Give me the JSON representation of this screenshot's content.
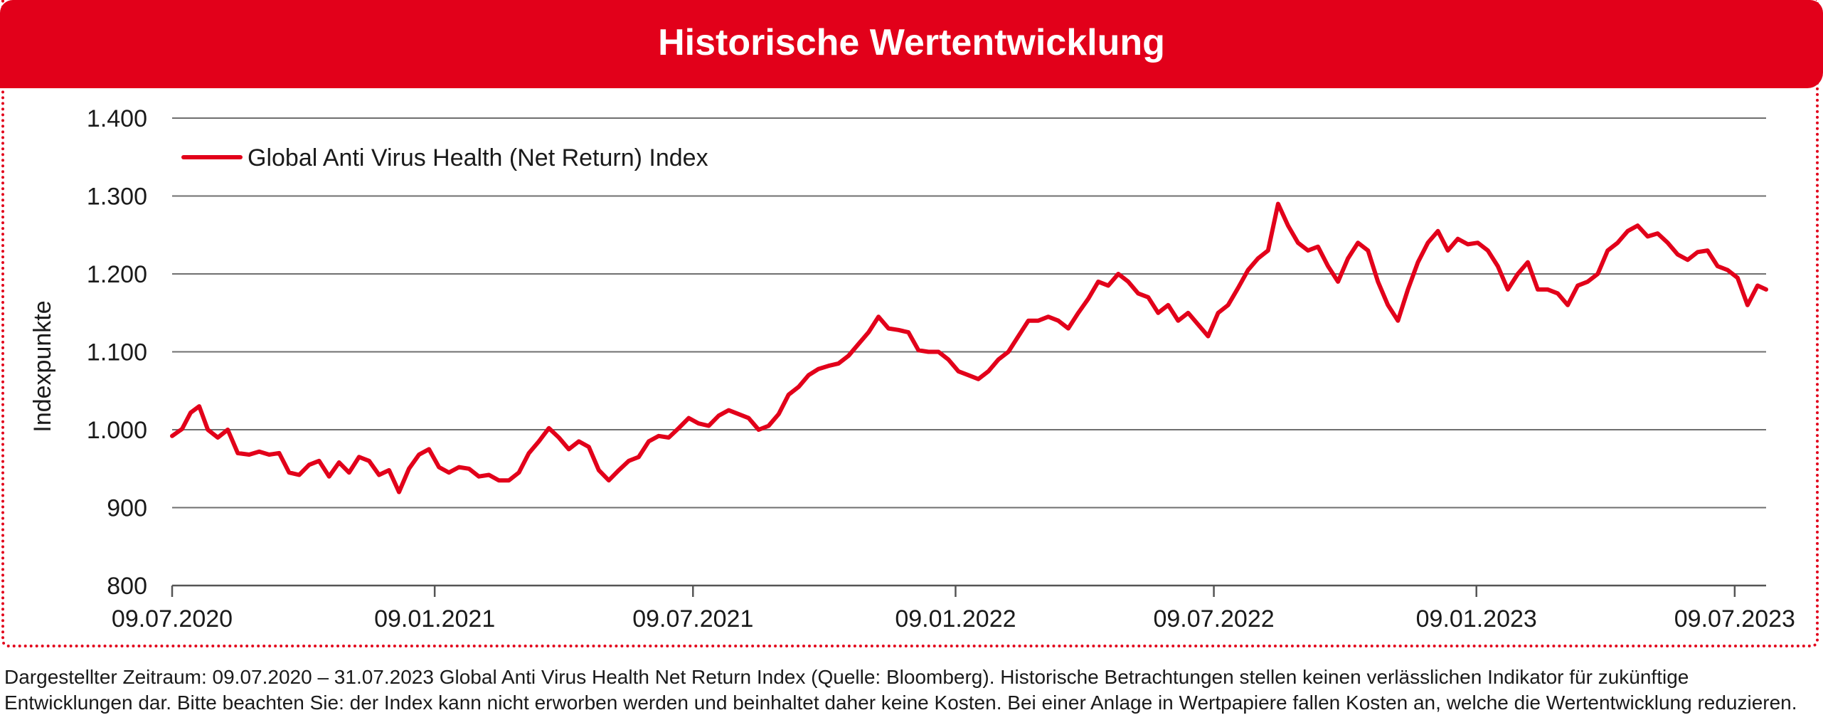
{
  "header": {
    "title": "Historische Wertentwicklung"
  },
  "footnote": "Dargestellter Zeitraum: 09.07.2020 – 31.07.2023 Global Anti Virus Health Net Return Index (Quelle: Bloomberg). Historische Betrachtungen stellen keinen verlässlichen Indikator für zukünftige Entwicklungen dar. Bitte beachten Sie: der Index kann nicht erworben werden und beinhaltet daher keine Kosten. Bei einer Anlage in Wertpapiere fallen Kosten an, welche die Wertentwicklung reduzieren.",
  "colors": {
    "accent": "#e2001a",
    "line": "#e2001a",
    "grid": "#6f6f6f",
    "text": "#1a1a1a"
  },
  "chart_data": {
    "type": "line",
    "title": "Historische Wertentwicklung",
    "xlabel": "",
    "ylabel": "Indexpunkte",
    "ylim": [
      800,
      1400
    ],
    "xlim": [
      "2020-07-09",
      "2023-07-31"
    ],
    "yticks": [
      800,
      900,
      1000,
      1100,
      1200,
      1300,
      1400
    ],
    "ytick_labels": [
      "800",
      "900",
      "1.000",
      "1.100",
      "1.200",
      "1.300",
      "1.400"
    ],
    "xticks": [
      "2020-07-09",
      "2021-01-09",
      "2021-07-09",
      "2022-01-09",
      "2022-07-09",
      "2023-01-09",
      "2023-07-09"
    ],
    "xtick_labels": [
      "09.07.2020",
      "09.01.2021",
      "09.07.2021",
      "09.01.2022",
      "09.07.2022",
      "09.01.2023",
      "09.07.2023"
    ],
    "grid": true,
    "legend_position": "top-left",
    "series": [
      {
        "name": "Global Anti Virus Health (Net Return) Index",
        "color": "#e2001a",
        "points": [
          [
            "2020-07-09",
            992
          ],
          [
            "2020-07-16",
            1001
          ],
          [
            "2020-07-22",
            1022
          ],
          [
            "2020-07-28",
            1030
          ],
          [
            "2020-08-03",
            1000
          ],
          [
            "2020-08-10",
            990
          ],
          [
            "2020-08-17",
            1000
          ],
          [
            "2020-08-24",
            970
          ],
          [
            "2020-09-01",
            968
          ],
          [
            "2020-09-08",
            972
          ],
          [
            "2020-09-15",
            968
          ],
          [
            "2020-09-22",
            970
          ],
          [
            "2020-09-29",
            945
          ],
          [
            "2020-10-06",
            942
          ],
          [
            "2020-10-13",
            955
          ],
          [
            "2020-10-20",
            960
          ],
          [
            "2020-10-27",
            940
          ],
          [
            "2020-11-03",
            958
          ],
          [
            "2020-11-10",
            945
          ],
          [
            "2020-11-17",
            965
          ],
          [
            "2020-11-24",
            960
          ],
          [
            "2020-12-01",
            942
          ],
          [
            "2020-12-08",
            948
          ],
          [
            "2020-12-15",
            920
          ],
          [
            "2020-12-22",
            950
          ],
          [
            "2020-12-29",
            968
          ],
          [
            "2021-01-05",
            975
          ],
          [
            "2021-01-12",
            952
          ],
          [
            "2021-01-19",
            945
          ],
          [
            "2021-01-26",
            952
          ],
          [
            "2021-02-02",
            950
          ],
          [
            "2021-02-09",
            940
          ],
          [
            "2021-02-16",
            942
          ],
          [
            "2021-02-23",
            935
          ],
          [
            "2021-03-02",
            935
          ],
          [
            "2021-03-09",
            945
          ],
          [
            "2021-03-16",
            970
          ],
          [
            "2021-03-23",
            985
          ],
          [
            "2021-03-30",
            1002
          ],
          [
            "2021-04-06",
            990
          ],
          [
            "2021-04-13",
            975
          ],
          [
            "2021-04-20",
            985
          ],
          [
            "2021-04-27",
            978
          ],
          [
            "2021-05-04",
            948
          ],
          [
            "2021-05-11",
            935
          ],
          [
            "2021-05-18",
            948
          ],
          [
            "2021-05-25",
            960
          ],
          [
            "2021-06-01",
            965
          ],
          [
            "2021-06-08",
            985
          ],
          [
            "2021-06-15",
            992
          ],
          [
            "2021-06-22",
            990
          ],
          [
            "2021-06-29",
            1002
          ],
          [
            "2021-07-06",
            1015
          ],
          [
            "2021-07-13",
            1008
          ],
          [
            "2021-07-20",
            1005
          ],
          [
            "2021-07-27",
            1018
          ],
          [
            "2021-08-03",
            1025
          ],
          [
            "2021-08-10",
            1020
          ],
          [
            "2021-08-17",
            1015
          ],
          [
            "2021-08-24",
            1000
          ],
          [
            "2021-08-31",
            1005
          ],
          [
            "2021-09-07",
            1020
          ],
          [
            "2021-09-14",
            1045
          ],
          [
            "2021-09-21",
            1055
          ],
          [
            "2021-09-28",
            1070
          ],
          [
            "2021-10-05",
            1078
          ],
          [
            "2021-10-12",
            1082
          ],
          [
            "2021-10-19",
            1085
          ],
          [
            "2021-10-26",
            1095
          ],
          [
            "2021-11-02",
            1110
          ],
          [
            "2021-11-09",
            1125
          ],
          [
            "2021-11-16",
            1145
          ],
          [
            "2021-11-23",
            1130
          ],
          [
            "2021-11-30",
            1128
          ],
          [
            "2021-12-07",
            1125
          ],
          [
            "2021-12-14",
            1102
          ],
          [
            "2021-12-21",
            1100
          ],
          [
            "2021-12-28",
            1100
          ],
          [
            "2022-01-04",
            1090
          ],
          [
            "2022-01-11",
            1075
          ],
          [
            "2022-01-18",
            1070
          ],
          [
            "2022-01-25",
            1065
          ],
          [
            "2022-02-01",
            1075
          ],
          [
            "2022-02-08",
            1090
          ],
          [
            "2022-02-15",
            1100
          ],
          [
            "2022-02-22",
            1120
          ],
          [
            "2022-03-01",
            1140
          ],
          [
            "2022-03-08",
            1140
          ],
          [
            "2022-03-15",
            1145
          ],
          [
            "2022-03-22",
            1140
          ],
          [
            "2022-03-29",
            1130
          ],
          [
            "2022-04-05",
            1150
          ],
          [
            "2022-04-12",
            1168
          ],
          [
            "2022-04-19",
            1190
          ],
          [
            "2022-04-26",
            1185
          ],
          [
            "2022-05-03",
            1200
          ],
          [
            "2022-05-10",
            1190
          ],
          [
            "2022-05-17",
            1175
          ],
          [
            "2022-05-24",
            1170
          ],
          [
            "2022-05-31",
            1150
          ],
          [
            "2022-06-07",
            1160
          ],
          [
            "2022-06-14",
            1140
          ],
          [
            "2022-06-21",
            1150
          ],
          [
            "2022-06-28",
            1135
          ],
          [
            "2022-07-05",
            1120
          ],
          [
            "2022-07-12",
            1150
          ],
          [
            "2022-07-19",
            1160
          ],
          [
            "2022-07-26",
            1182
          ],
          [
            "2022-08-02",
            1205
          ],
          [
            "2022-08-09",
            1220
          ],
          [
            "2022-08-16",
            1230
          ],
          [
            "2022-08-23",
            1290
          ],
          [
            "2022-08-30",
            1262
          ],
          [
            "2022-09-06",
            1240
          ],
          [
            "2022-09-13",
            1230
          ],
          [
            "2022-09-20",
            1235
          ],
          [
            "2022-09-27",
            1210
          ],
          [
            "2022-10-04",
            1190
          ],
          [
            "2022-10-11",
            1220
          ],
          [
            "2022-10-18",
            1240
          ],
          [
            "2022-10-25",
            1230
          ],
          [
            "2022-11-01",
            1190
          ],
          [
            "2022-11-08",
            1160
          ],
          [
            "2022-11-15",
            1140
          ],
          [
            "2022-11-22",
            1180
          ],
          [
            "2022-11-29",
            1215
          ],
          [
            "2022-12-06",
            1240
          ],
          [
            "2022-12-13",
            1255
          ],
          [
            "2022-12-20",
            1230
          ],
          [
            "2022-12-27",
            1245
          ],
          [
            "2023-01-03",
            1238
          ],
          [
            "2023-01-10",
            1240
          ],
          [
            "2023-01-17",
            1230
          ],
          [
            "2023-01-24",
            1210
          ],
          [
            "2023-01-31",
            1180
          ],
          [
            "2023-02-07",
            1200
          ],
          [
            "2023-02-14",
            1215
          ],
          [
            "2023-02-21",
            1180
          ],
          [
            "2023-02-28",
            1180
          ],
          [
            "2023-03-07",
            1175
          ],
          [
            "2023-03-14",
            1160
          ],
          [
            "2023-03-21",
            1185
          ],
          [
            "2023-03-28",
            1190
          ],
          [
            "2023-04-04",
            1200
          ],
          [
            "2023-04-11",
            1230
          ],
          [
            "2023-04-18",
            1240
          ],
          [
            "2023-04-25",
            1255
          ],
          [
            "2023-05-02",
            1262
          ],
          [
            "2023-05-09",
            1248
          ],
          [
            "2023-05-16",
            1252
          ],
          [
            "2023-05-23",
            1240
          ],
          [
            "2023-05-30",
            1225
          ],
          [
            "2023-06-06",
            1218
          ],
          [
            "2023-06-13",
            1228
          ],
          [
            "2023-06-20",
            1230
          ],
          [
            "2023-06-27",
            1210
          ],
          [
            "2023-07-04",
            1205
          ],
          [
            "2023-07-11",
            1195
          ],
          [
            "2023-07-18",
            1160
          ],
          [
            "2023-07-25",
            1185
          ],
          [
            "2023-07-31",
            1180
          ]
        ]
      }
    ]
  }
}
